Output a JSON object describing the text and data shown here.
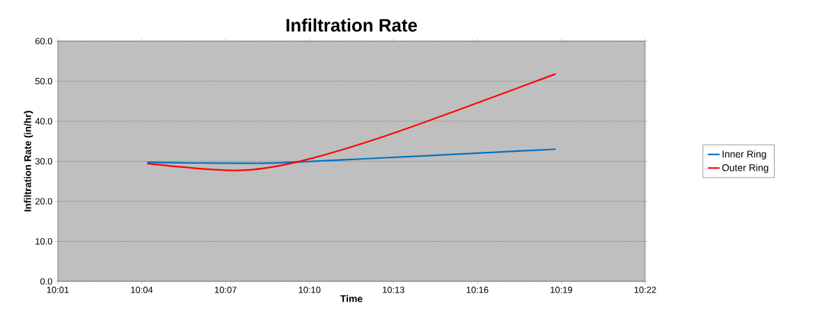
{
  "chart_data": {
    "type": "line",
    "title": "Infiltration Rate",
    "xlabel": "Time",
    "ylabel": "Infiltration Rate (in/hr)",
    "xlim": [
      10.0167,
      10.3667
    ],
    "xticks": [
      {
        "value": 10.0167,
        "label": "10:01"
      },
      {
        "value": 10.0667,
        "label": "10:04"
      },
      {
        "value": 10.1167,
        "label": "10:07"
      },
      {
        "value": 10.1667,
        "label": "10:10"
      },
      {
        "value": 10.2167,
        "label": "10:13"
      },
      {
        "value": 10.2667,
        "label": "10:16"
      },
      {
        "value": 10.3167,
        "label": "10:19"
      },
      {
        "value": 10.3667,
        "label": "10:22"
      }
    ],
    "ylim": [
      0,
      60
    ],
    "yticks": [
      {
        "value": 0,
        "label": "0.0"
      },
      {
        "value": 10,
        "label": "10.0"
      },
      {
        "value": 20,
        "label": "20.0"
      },
      {
        "value": 30,
        "label": "30.0"
      },
      {
        "value": 40,
        "label": "40.0"
      },
      {
        "value": 50,
        "label": "50.0"
      },
      {
        "value": 60,
        "label": "60.0"
      }
    ],
    "grid": "y",
    "legend": "right",
    "marker": "none",
    "line_style": "solid",
    "series": [
      {
        "name": "Inner Ring",
        "color": "#0070c0",
        "x": [
          10.07,
          10.1233,
          10.16,
          10.3133
        ],
        "values": [
          29.7,
          29.5,
          29.8,
          33.0
        ]
      },
      {
        "name": "Outer Ring",
        "color": "#ff0000",
        "x": [
          10.07,
          10.1233,
          10.16,
          10.2167,
          10.3133
        ],
        "values": [
          29.4,
          27.7,
          29.9,
          37.0,
          51.8
        ]
      }
    ]
  }
}
